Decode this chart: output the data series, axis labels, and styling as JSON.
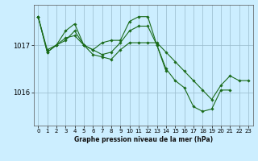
{
  "background_color": "#cceeff",
  "plot_background_color": "#cceeff",
  "line_color": "#1a6b1a",
  "grid_color": "#99bbcc",
  "xlabel": "Graphe pression niveau de la mer (hPa)",
  "xlim": [
    -0.5,
    23.5
  ],
  "ylim": [
    1015.3,
    1017.85
  ],
  "yticks": [
    1016,
    1017
  ],
  "xticks": [
    0,
    1,
    2,
    3,
    4,
    5,
    6,
    7,
    8,
    9,
    10,
    11,
    12,
    13,
    14,
    15,
    16,
    17,
    18,
    19,
    20,
    21,
    22,
    23
  ],
  "series": [
    {
      "x": [
        0,
        1,
        2,
        3,
        4,
        5,
        6,
        7,
        8,
        9,
        10,
        11,
        12,
        13,
        14,
        15,
        16,
        17,
        18,
        19,
        20,
        21
      ],
      "y": [
        1017.6,
        1016.9,
        1017.0,
        1017.15,
        1017.2,
        1017.0,
        1016.9,
        1016.8,
        1016.85,
        1017.05,
        1017.3,
        1017.4,
        1017.4,
        1017.0,
        1016.5,
        1016.25,
        1016.1,
        1015.7,
        1015.6,
        1015.65,
        1016.05,
        1016.05
      ]
    },
    {
      "x": [
        0,
        1,
        2,
        3,
        4,
        5,
        6,
        7,
        8,
        9,
        10,
        11,
        12,
        13,
        14
      ],
      "y": [
        1017.6,
        1016.85,
        1017.0,
        1017.3,
        1017.45,
        1017.0,
        1016.9,
        1017.05,
        1017.1,
        1017.1,
        1017.5,
        1017.6,
        1017.6,
        1017.0,
        1016.45
      ]
    },
    {
      "x": [
        0,
        1,
        2,
        3,
        4,
        5,
        6,
        7,
        8,
        9,
        10,
        11,
        12,
        13,
        14,
        15,
        16,
        17,
        18,
        19,
        20,
        21,
        22,
        23
      ],
      "y": [
        1017.6,
        1016.85,
        1017.0,
        1017.1,
        1017.3,
        1017.0,
        1016.8,
        1016.75,
        1016.7,
        1016.9,
        1017.05,
        1017.05,
        1017.05,
        1017.05,
        1016.85,
        1016.65,
        1016.45,
        1016.25,
        1016.05,
        1015.85,
        1016.15,
        1016.35,
        1016.25,
        1016.25
      ]
    }
  ]
}
